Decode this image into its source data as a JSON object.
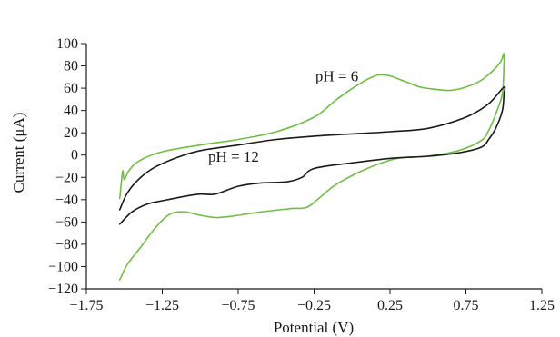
{
  "chart_data": {
    "type": "line",
    "title": "",
    "xlabel": "Potential (V)",
    "ylabel": "Current (μA)",
    "xlim": [
      -1.75,
      1.25
    ],
    "ylim": [
      -120,
      100
    ],
    "x_ticks": [
      -1.75,
      -1.25,
      -0.75,
      -0.25,
      0.25,
      0.75,
      1.25
    ],
    "x_tick_labels": [
      "−1.75",
      "−1.25",
      "−0.75",
      "−0.25",
      "0.25",
      "0.75",
      "1.25"
    ],
    "y_ticks": [
      100,
      80,
      60,
      40,
      20,
      0,
      -20,
      -40,
      -60,
      -80,
      -100,
      -120
    ],
    "y_tick_labels": [
      "100",
      "80",
      "60",
      "40",
      "20",
      "0",
      "−20",
      "−40",
      "−60",
      "−80",
      "−100",
      "−120"
    ],
    "grid": false,
    "legend": "none",
    "annotations": [
      {
        "text": "pH = 6",
        "x": -0.1,
        "y": 66
      },
      {
        "text": "pH = 12",
        "x": -0.78,
        "y": -6
      }
    ],
    "series": [
      {
        "name": "pH = 6",
        "color": "#6fbe44",
        "points": [
          [
            -1.53,
            -39
          ],
          [
            -1.52,
            -25
          ],
          [
            -1.51,
            -14
          ],
          [
            -1.5,
            -22
          ],
          [
            -1.47,
            -14
          ],
          [
            -1.4,
            -5
          ],
          [
            -1.25,
            3
          ],
          [
            -1.0,
            9
          ],
          [
            -0.75,
            14
          ],
          [
            -0.5,
            21
          ],
          [
            -0.25,
            34
          ],
          [
            -0.1,
            50
          ],
          [
            0.05,
            64
          ],
          [
            0.15,
            71
          ],
          [
            0.2,
            72
          ],
          [
            0.25,
            71
          ],
          [
            0.35,
            66
          ],
          [
            0.45,
            61
          ],
          [
            0.55,
            59
          ],
          [
            0.65,
            58
          ],
          [
            0.75,
            61
          ],
          [
            0.85,
            67
          ],
          [
            0.93,
            76
          ],
          [
            0.98,
            84
          ],
          [
            1.0,
            91
          ],
          [
            1.0,
            80
          ],
          [
            0.99,
            55
          ],
          [
            0.95,
            38
          ],
          [
            0.9,
            22
          ],
          [
            0.85,
            13
          ],
          [
            0.7,
            4
          ],
          [
            0.5,
            -1
          ],
          [
            0.3,
            -3
          ],
          [
            0.1,
            -12
          ],
          [
            -0.1,
            -26
          ],
          [
            -0.22,
            -39
          ],
          [
            -0.3,
            -47
          ],
          [
            -0.4,
            -48
          ],
          [
            -0.6,
            -51
          ],
          [
            -0.8,
            -55
          ],
          [
            -0.9,
            -56
          ],
          [
            -1.0,
            -54
          ],
          [
            -1.1,
            -51
          ],
          [
            -1.2,
            -53
          ],
          [
            -1.3,
            -66
          ],
          [
            -1.4,
            -84
          ],
          [
            -1.48,
            -98
          ],
          [
            -1.53,
            -112
          ]
        ]
      },
      {
        "name": "pH = 12",
        "color": "#1a1a1a",
        "points": [
          [
            -1.53,
            -49
          ],
          [
            -1.48,
            -34
          ],
          [
            -1.4,
            -21
          ],
          [
            -1.3,
            -11
          ],
          [
            -1.15,
            -2
          ],
          [
            -1.0,
            4
          ],
          [
            -0.75,
            9
          ],
          [
            -0.5,
            14
          ],
          [
            -0.25,
            17
          ],
          [
            0.0,
            19
          ],
          [
            0.25,
            21
          ],
          [
            0.5,
            24
          ],
          [
            0.75,
            34
          ],
          [
            0.9,
            46
          ],
          [
            1.0,
            61
          ],
          [
            1.0,
            54
          ],
          [
            0.99,
            40
          ],
          [
            0.95,
            25
          ],
          [
            0.9,
            14
          ],
          [
            0.85,
            7
          ],
          [
            0.7,
            2
          ],
          [
            0.5,
            -1
          ],
          [
            0.25,
            -3
          ],
          [
            0.0,
            -7
          ],
          [
            -0.25,
            -12
          ],
          [
            -0.33,
            -20
          ],
          [
            -0.43,
            -24
          ],
          [
            -0.6,
            -25
          ],
          [
            -0.75,
            -28
          ],
          [
            -0.9,
            -35
          ],
          [
            -1.0,
            -35
          ],
          [
            -1.1,
            -37
          ],
          [
            -1.25,
            -41
          ],
          [
            -1.35,
            -44
          ],
          [
            -1.45,
            -51
          ],
          [
            -1.53,
            -62
          ]
        ]
      }
    ]
  }
}
